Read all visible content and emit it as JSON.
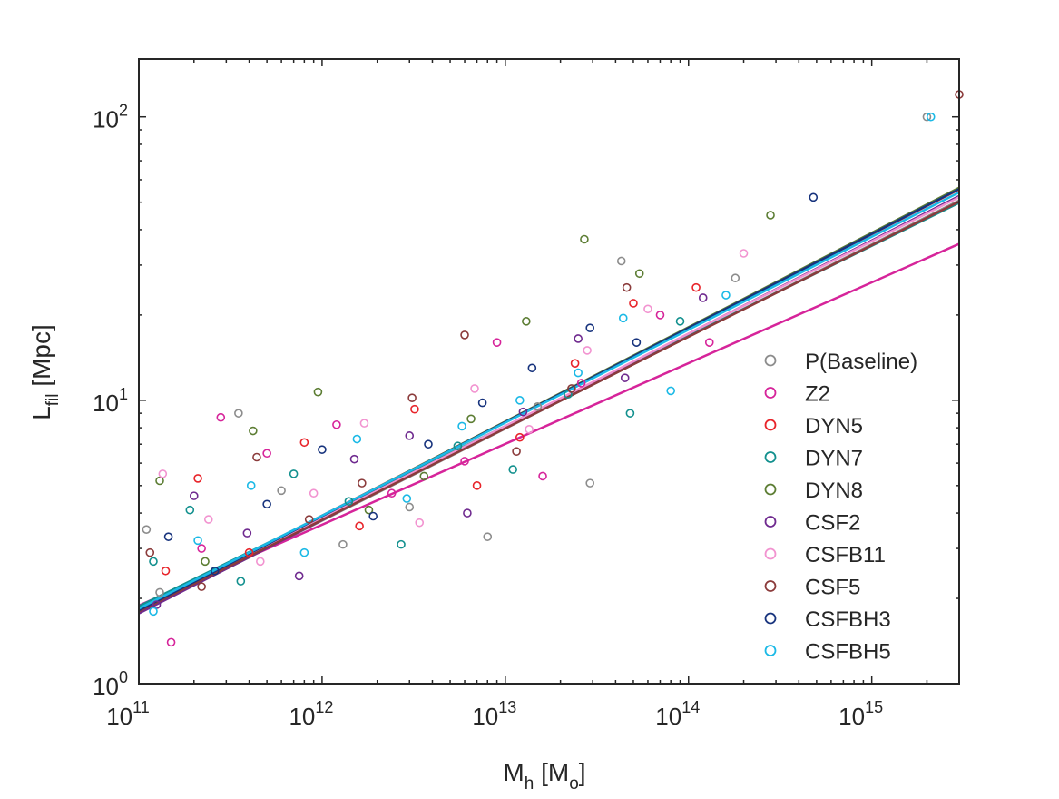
{
  "chart_data": {
    "type": "scatter",
    "x_scale": "log",
    "y_scale": "log",
    "xlim": [
      100000000000.0,
      3000000000000000.0
    ],
    "ylim": [
      1,
      160
    ],
    "xlabel": {
      "main": "M",
      "sub": "h",
      "after": " [M",
      "sub2": "o",
      "end": "]"
    },
    "ylabel": {
      "main": "L",
      "sub": "fil",
      "after": " [Mpc]"
    },
    "x_ticks": [
      {
        "base": "10",
        "exp": "11",
        "value": 100000000000.0
      },
      {
        "base": "10",
        "exp": "12",
        "value": 1000000000000.0
      },
      {
        "base": "10",
        "exp": "13",
        "value": 10000000000000.0
      },
      {
        "base": "10",
        "exp": "14",
        "value": 100000000000000.0
      },
      {
        "base": "10",
        "exp": "15",
        "value": 1000000000000000.0
      }
    ],
    "y_ticks": [
      {
        "base": "10",
        "exp": "0",
        "value": 1
      },
      {
        "base": "10",
        "exp": "1",
        "value": 10
      },
      {
        "base": "10",
        "exp": "2",
        "value": 100
      }
    ],
    "grid": false,
    "legend_position": "right",
    "series": [
      {
        "name": "P(Baseline)",
        "color": "#8c8c8c",
        "fit": {
          "slope": 0.325,
          "intercept": -3.325
        },
        "points": [
          [
            110000000000.0,
            3.5
          ],
          [
            130000000000.0,
            2.1
          ],
          [
            350000000000.0,
            9.0
          ],
          [
            600000000000.0,
            4.8
          ],
          [
            1300000000000.0,
            3.1
          ],
          [
            3000000000000.0,
            4.2
          ],
          [
            8000000000000.0,
            3.3
          ],
          [
            15000000000000.0,
            9.5
          ],
          [
            29000000000000.0,
            5.1
          ],
          [
            43000000000000.0,
            31.0
          ],
          [
            180000000000000.0,
            27.0
          ],
          [
            2000000000000000.0,
            100.0
          ]
        ]
      },
      {
        "name": "Z2",
        "color": "#d6249a",
        "fit": {
          "slope": 0.285,
          "intercept": -2.859
        },
        "points": [
          [
            150000000000.0,
            1.4
          ],
          [
            220000000000.0,
            3.0
          ],
          [
            280000000000.0,
            8.7
          ],
          [
            500000000000.0,
            6.5
          ],
          [
            1200000000000.0,
            8.2
          ],
          [
            2400000000000.0,
            4.7
          ],
          [
            6000000000000.0,
            6.1
          ],
          [
            9000000000000.0,
            16.0
          ],
          [
            16000000000000.0,
            5.4
          ],
          [
            26000000000000.0,
            11.5
          ],
          [
            70000000000000.0,
            20.0
          ],
          [
            130000000000000.0,
            16.0
          ]
        ]
      },
      {
        "name": "DYN5",
        "color": "#e8242a",
        "fit": {
          "slope": 0.331,
          "intercept": -3.379
        },
        "points": [
          [
            140000000000.0,
            2.5
          ],
          [
            210000000000.0,
            5.3
          ],
          [
            400000000000.0,
            2.9
          ],
          [
            800000000000.0,
            7.1
          ],
          [
            1600000000000.0,
            3.6
          ],
          [
            3200000000000.0,
            9.3
          ],
          [
            7000000000000.0,
            5.0
          ],
          [
            12000000000000.0,
            7.4
          ],
          [
            24000000000000.0,
            13.5
          ],
          [
            50000000000000.0,
            22.0
          ],
          [
            110000000000000.0,
            25.0
          ]
        ]
      },
      {
        "name": "DYN7",
        "color": "#12908e",
        "fit": {
          "slope": 0.318,
          "intercept": -3.225
        },
        "points": [
          [
            120000000000.0,
            2.7
          ],
          [
            190000000000.0,
            4.1
          ],
          [
            360000000000.0,
            2.3
          ],
          [
            700000000000.0,
            5.5
          ],
          [
            1400000000000.0,
            4.4
          ],
          [
            2700000000000.0,
            3.1
          ],
          [
            5500000000000.0,
            6.9
          ],
          [
            11000000000000.0,
            5.7
          ],
          [
            22000000000000.0,
            10.5
          ],
          [
            48000000000000.0,
            9.0
          ],
          [
            90000000000000.0,
            19.0
          ]
        ]
      },
      {
        "name": "DYN8",
        "color": "#5c7d33",
        "fit": {
          "slope": 0.333,
          "intercept": -3.404
        },
        "points": [
          [
            130000000000.0,
            5.2
          ],
          [
            230000000000.0,
            2.7
          ],
          [
            420000000000.0,
            7.8
          ],
          [
            950000000000.0,
            10.7
          ],
          [
            1800000000000.0,
            4.1
          ],
          [
            3600000000000.0,
            5.4
          ],
          [
            6500000000000.0,
            8.6
          ],
          [
            13000000000000.0,
            19.0
          ],
          [
            27000000000000.0,
            37.0
          ],
          [
            54000000000000.0,
            28.0
          ],
          [
            280000000000000.0,
            45.0
          ]
        ]
      },
      {
        "name": "CSF2",
        "color": "#6f2a8f",
        "fit": {
          "slope": 0.329,
          "intercept": -3.371
        },
        "points": [
          [
            125000000000.0,
            1.9
          ],
          [
            200000000000.0,
            4.6
          ],
          [
            390000000000.0,
            3.4
          ],
          [
            750000000000.0,
            2.4
          ],
          [
            1500000000000.0,
            6.2
          ],
          [
            3000000000000.0,
            7.5
          ],
          [
            6200000000000.0,
            4.0
          ],
          [
            12500000000000.0,
            9.1
          ],
          [
            25000000000000.0,
            16.5
          ],
          [
            45000000000000.0,
            12.0
          ],
          [
            120000000000000.0,
            23.0
          ]
        ]
      },
      {
        "name": "CSFB11",
        "color": "#f293d0",
        "fit": {
          "slope": 0.326,
          "intercept": -3.329
        },
        "points": [
          [
            135000000000.0,
            5.5
          ],
          [
            240000000000.0,
            3.8
          ],
          [
            460000000000.0,
            2.7
          ],
          [
            900000000000.0,
            4.7
          ],
          [
            1700000000000.0,
            8.3
          ],
          [
            3400000000000.0,
            3.7
          ],
          [
            6800000000000.0,
            11.0
          ],
          [
            13500000000000.0,
            7.9
          ],
          [
            28000000000000.0,
            15.0
          ],
          [
            60000000000000.0,
            21.0
          ],
          [
            200000000000000.0,
            33.0
          ]
        ]
      },
      {
        "name": "CSF5",
        "color": "#8b3b3b",
        "fit": {
          "slope": 0.323,
          "intercept": -3.298
        },
        "points": [
          [
            115000000000.0,
            2.9
          ],
          [
            220000000000.0,
            2.2
          ],
          [
            440000000000.0,
            6.3
          ],
          [
            850000000000.0,
            3.8
          ],
          [
            1650000000000.0,
            5.1
          ],
          [
            3100000000000.0,
            10.2
          ],
          [
            6000000000000.0,
            17.0
          ],
          [
            11500000000000.0,
            6.6
          ],
          [
            23000000000000.0,
            11.0
          ],
          [
            46000000000000.0,
            25.0
          ],
          [
            3000000000000000.0,
            120.0
          ]
        ]
      },
      {
        "name": "CSFBH3",
        "color": "#17337d",
        "fit": {
          "slope": 0.332,
          "intercept": -3.393
        },
        "points": [
          [
            145000000000.0,
            3.3
          ],
          [
            260000000000.0,
            2.5
          ],
          [
            500000000000.0,
            4.3
          ],
          [
            1000000000000.0,
            6.7
          ],
          [
            1900000000000.0,
            3.9
          ],
          [
            3800000000000.0,
            7.0
          ],
          [
            7500000000000.0,
            9.8
          ],
          [
            14000000000000.0,
            13.0
          ],
          [
            29000000000000.0,
            18.0
          ],
          [
            52000000000000.0,
            16.0
          ],
          [
            480000000000000.0,
            52.0
          ]
        ]
      },
      {
        "name": "CSFBH5",
        "color": "#1bb9e6",
        "fit": {
          "slope": 0.328,
          "intercept": -3.343
        },
        "points": [
          [
            120000000000.0,
            1.8
          ],
          [
            210000000000.0,
            3.2
          ],
          [
            410000000000.0,
            5.0
          ],
          [
            800000000000.0,
            2.9
          ],
          [
            1550000000000.0,
            7.3
          ],
          [
            2900000000000.0,
            4.5
          ],
          [
            5800000000000.0,
            8.1
          ],
          [
            12000000000000.0,
            10.0
          ],
          [
            25000000000000.0,
            12.5
          ],
          [
            44000000000000.0,
            19.5
          ],
          [
            80000000000000.0,
            10.8
          ],
          [
            160000000000000.0,
            23.5
          ],
          [
            2100000000000000.0,
            100.0
          ]
        ]
      }
    ]
  }
}
